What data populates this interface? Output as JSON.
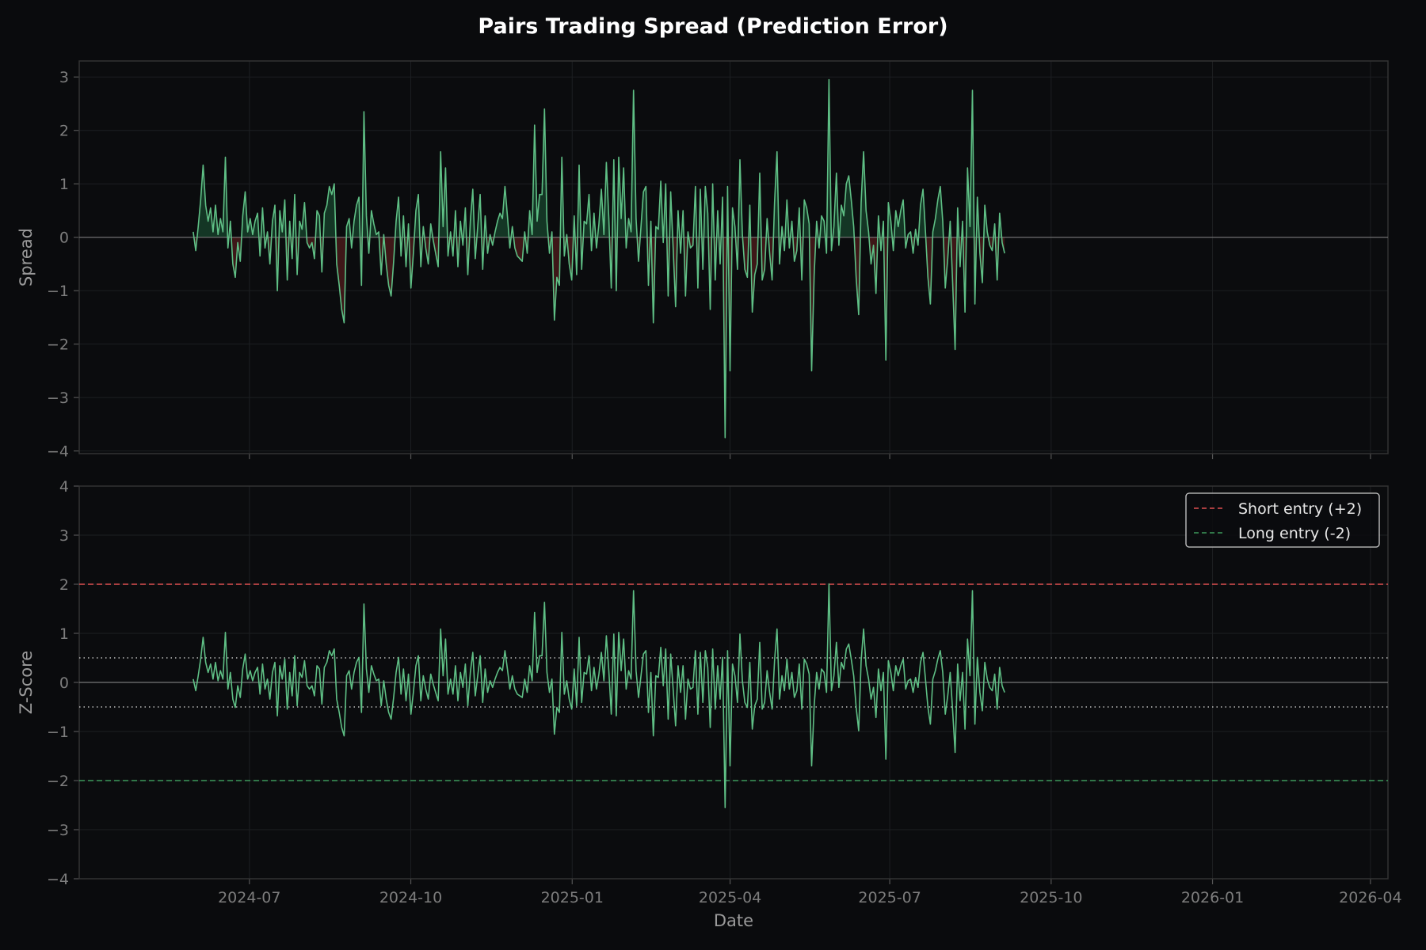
{
  "title": "Pairs Trading Spread (Prediction Error)",
  "colors": {
    "background": "#0a0b0d",
    "line": "#5fbf85",
    "fill_positive": "#1f6a42",
    "fill_negative": "#6a2020",
    "short_entry": "#e05050",
    "long_entry": "#3d9a5c",
    "grid": "#1d1f22",
    "spine": "#333333",
    "zero_line": "#777777",
    "exit_band": "#bbbbbb"
  },
  "chart_data": [
    {
      "type": "area",
      "panel": "top",
      "title": "",
      "xlabel": "",
      "ylabel": "Spread",
      "x_type": "date",
      "xlim": [
        "2024-03-26",
        "2026-04-11"
      ],
      "ylim": [
        -4.05,
        3.3
      ],
      "yticks": [
        -4,
        -3,
        -2,
        -1,
        0,
        1,
        2,
        3
      ],
      "xticks": [],
      "grid": true,
      "reference_lines": [
        {
          "y": 0,
          "style": "solid"
        }
      ],
      "series": [
        {
          "x_start": "2024-05-30",
          "x_step_days": 1.41,
          "values": [
            0.1,
            -0.25,
            0.2,
            0.7,
            1.35,
            0.6,
            0.3,
            0.55,
            0.1,
            0.6,
            0.05,
            0.35,
            0.1,
            1.5,
            -0.2,
            0.3,
            -0.5,
            -0.75,
            -0.1,
            -0.45,
            0.4,
            0.85,
            0.1,
            0.35,
            0.05,
            0.3,
            0.45,
            -0.35,
            0.55,
            -0.2,
            0.1,
            -0.5,
            0.3,
            0.6,
            -1.0,
            0.5,
            0.1,
            0.7,
            -0.8,
            0.3,
            -0.4,
            0.8,
            -0.7,
            0.3,
            0.15,
            0.65,
            -0.1,
            -0.2,
            -0.1,
            -0.4,
            0.5,
            0.4,
            -0.65,
            0.45,
            0.6,
            0.95,
            0.8,
            1.0,
            -0.5,
            -0.9,
            -1.35,
            -1.6,
            0.2,
            0.35,
            -0.2,
            0.3,
            0.6,
            0.75,
            -0.9,
            2.35,
            0.4,
            -0.3,
            0.5,
            0.25,
            0.05,
            0.1,
            -0.7,
            0.05,
            -0.5,
            -0.9,
            -1.1,
            -0.45,
            0.3,
            0.75,
            -0.35,
            0.4,
            -0.55,
            0.25,
            -0.95,
            -0.3,
            0.5,
            0.8,
            -0.55,
            0.2,
            -0.2,
            -0.5,
            0.25,
            -0.05,
            -0.3,
            -0.55,
            1.6,
            0.2,
            1.3,
            -0.35,
            0.1,
            -0.35,
            0.5,
            -0.55,
            0.3,
            -0.15,
            0.55,
            -0.7,
            0.3,
            0.9,
            -0.4,
            0.2,
            0.8,
            -0.6,
            0.4,
            -0.3,
            0.05,
            -0.15,
            0.1,
            0.3,
            0.45,
            0.35,
            0.95,
            0.4,
            -0.2,
            0.2,
            -0.2,
            -0.35,
            -0.4,
            -0.45,
            0.1,
            -0.3,
            0.5,
            0.05,
            2.1,
            0.3,
            0.8,
            0.8,
            2.4,
            0.3,
            -0.3,
            0.1,
            -1.55,
            -0.75,
            -0.9,
            1.5,
            -0.35,
            0.05,
            -0.5,
            -0.8,
            0.4,
            -0.7,
            1.35,
            -0.6,
            0.3,
            0.25,
            0.8,
            -0.25,
            0.45,
            -0.2,
            0.25,
            0.9,
            0.05,
            1.4,
            0.35,
            -0.95,
            1.45,
            -1.0,
            1.5,
            0.35,
            1.3,
            -0.2,
            0.35,
            0.1,
            2.75,
            0.35,
            -0.45,
            0.2,
            0.85,
            0.95,
            -0.9,
            0.3,
            -1.6,
            0.2,
            0.15,
            1.05,
            -0.1,
            1.0,
            -1.1,
            0.85,
            -0.2,
            -1.3,
            0.5,
            -0.3,
            0.5,
            -1.1,
            0.1,
            -0.2,
            -0.15,
            0.95,
            -0.95,
            0.9,
            -0.6,
            0.95,
            0.45,
            -1.35,
            1.0,
            -0.8,
            0.5,
            -0.5,
            0.75,
            -3.75,
            0.95,
            -2.5,
            0.55,
            0.2,
            -0.6,
            1.45,
            0.05,
            -0.6,
            -0.75,
            0.6,
            -1.4,
            -0.7,
            -0.5,
            1.2,
            -0.8,
            -0.6,
            0.35,
            -0.3,
            -0.8,
            0.65,
            1.6,
            -0.5,
            0.2,
            -0.25,
            0.7,
            -0.2,
            0.3,
            -0.45,
            -0.25,
            0.55,
            -0.8,
            0.7,
            0.55,
            0.25,
            -2.5,
            -0.7,
            0.3,
            -0.2,
            0.4,
            0.3,
            -0.3,
            2.95,
            -0.25,
            0.2,
            1.2,
            -0.15,
            0.6,
            0.4,
            1.0,
            1.15,
            0.7,
            0.2,
            -0.75,
            -1.45,
            0.65,
            1.6,
            0.5,
            0.1,
            -0.5,
            -0.15,
            -1.05,
            0.4,
            -0.25,
            0.3,
            -2.3,
            0.65,
            0.3,
            -0.25,
            0.5,
            0.2,
            0.5,
            0.7,
            -0.2,
            0.05,
            0.1,
            -0.3,
            0.15,
            -0.15,
            0.6,
            0.9,
            0.1,
            -0.75,
            -1.25,
            0.1,
            0.35,
            0.7,
            0.95,
            0.3,
            -0.95,
            -0.4,
            0.3,
            -0.85,
            -2.1,
            0.55,
            -0.55,
            0.3,
            -1.4,
            1.3,
            0.2,
            2.75,
            -1.25,
            0.75,
            -0.3,
            -0.85,
            0.6,
            0.1,
            -0.15,
            -0.25,
            0.25,
            -0.8,
            0.45,
            -0.1,
            -0.3
          ]
        }
      ]
    },
    {
      "type": "line",
      "panel": "bottom",
      "title": "",
      "xlabel": "Date",
      "ylabel": "Z-Score",
      "x_type": "date",
      "xlim": [
        "2024-03-26",
        "2026-04-11"
      ],
      "ylim": [
        -4,
        4
      ],
      "yticks": [
        -4,
        -3,
        -2,
        -1,
        0,
        1,
        2,
        3,
        4
      ],
      "xticks": [
        "2024-07",
        "2024-10",
        "2025-01",
        "2025-04",
        "2025-07",
        "2025-10",
        "2026-01",
        "2026-04"
      ],
      "grid": true,
      "legend_position": "top-right",
      "reference_lines": [
        {
          "y": 2,
          "style": "dashed",
          "label": "Short entry (+2)"
        },
        {
          "y": -2,
          "style": "dashed",
          "label": "Long entry (-2)"
        },
        {
          "y": 0.5,
          "style": "dotted"
        },
        {
          "y": -0.5,
          "style": "dotted"
        },
        {
          "y": 0,
          "style": "solid"
        }
      ],
      "legend": [
        "Short entry (+2)",
        "Long entry (-2)"
      ],
      "series": [
        {
          "derived_from": "spread",
          "scale": 0.68,
          "offset": 0.0
        }
      ]
    }
  ]
}
